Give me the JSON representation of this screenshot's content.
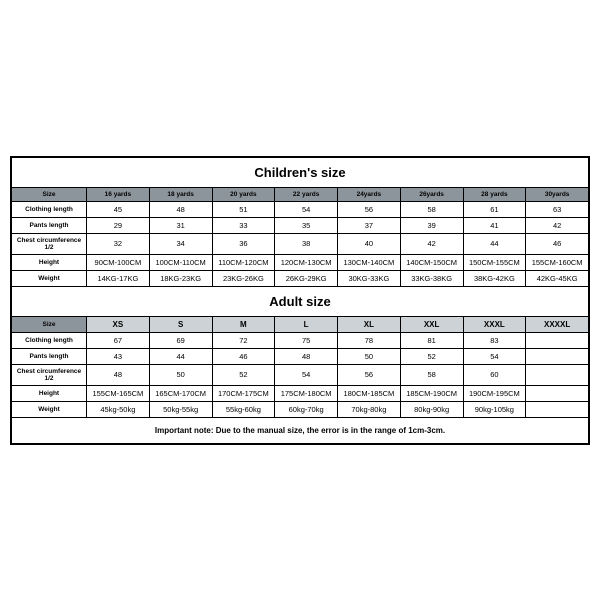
{
  "children": {
    "title": "Children's size",
    "header": [
      "Size",
      "16 yards",
      "18 yards",
      "20 yards",
      "22 yards",
      "24yards",
      "26yards",
      "28 yards",
      "30yards"
    ],
    "rows": [
      {
        "label": "Clothing length",
        "cells": [
          "45",
          "48",
          "51",
          "54",
          "56",
          "58",
          "61",
          "63"
        ]
      },
      {
        "label": "Pants length",
        "cells": [
          "29",
          "31",
          "33",
          "35",
          "37",
          "39",
          "41",
          "42"
        ]
      },
      {
        "label": "Chest circumference 1/2",
        "cells": [
          "32",
          "34",
          "36",
          "38",
          "40",
          "42",
          "44",
          "46"
        ]
      },
      {
        "label": "Height",
        "cells": [
          "90CM-100CM",
          "100CM-110CM",
          "110CM-120CM",
          "120CM-130CM",
          "130CM-140CM",
          "140CM-150CM",
          "150CM-155CM",
          "155CM-160CM"
        ]
      },
      {
        "label": "Weight",
        "cells": [
          "14KG-17KG",
          "18KG-23KG",
          "23KG-26KG",
          "26KG-29KG",
          "30KG-33KG",
          "33KG-38KG",
          "38KG-42KG",
          "42KG-45KG"
        ]
      }
    ]
  },
  "adult": {
    "title": "Adult size",
    "header": [
      "Size",
      "XS",
      "S",
      "M",
      "L",
      "XL",
      "XXL",
      "XXXL",
      "XXXXL"
    ],
    "rows": [
      {
        "label": "Clothing length",
        "cells": [
          "67",
          "69",
          "72",
          "75",
          "78",
          "81",
          "83",
          ""
        ]
      },
      {
        "label": "Pants length",
        "cells": [
          "43",
          "44",
          "46",
          "48",
          "50",
          "52",
          "54",
          ""
        ]
      },
      {
        "label": "Chest circumference 1/2",
        "cells": [
          "48",
          "50",
          "52",
          "54",
          "56",
          "58",
          "60",
          ""
        ]
      },
      {
        "label": "Height",
        "cells": [
          "155CM-165CM",
          "165CM-170CM",
          "170CM-175CM",
          "175CM-180CM",
          "180CM-185CM",
          "185CM-190CM",
          "190CM-195CM",
          ""
        ]
      },
      {
        "label": "Weight",
        "cells": [
          "45kg-50kg",
          "50kg-55kg",
          "55kg-60kg",
          "60kg-70kg",
          "70kg-80kg",
          "80kg-90kg",
          "90kg-105kg",
          ""
        ]
      }
    ]
  },
  "note": "Important note: Due to the manual size, the error is in the range of 1cm-3cm."
}
